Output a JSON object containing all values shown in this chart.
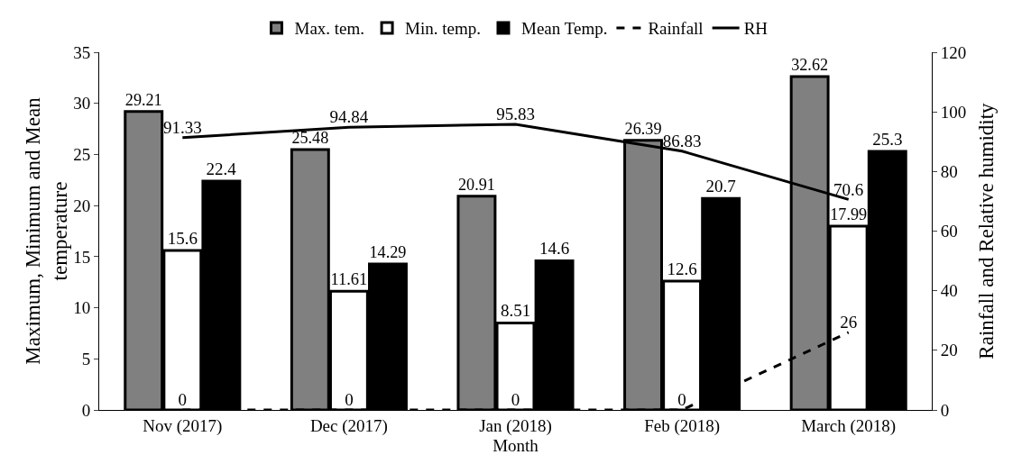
{
  "chart_data": {
    "type": "bar",
    "xlabel": "Month",
    "ylabel": "Maximum, Minimum and Mean temperature",
    "y2label": "Rainfall and Relative humidity",
    "categories": [
      "Nov (2017)",
      "Dec (2017)",
      "Jan (2018)",
      "Feb (2018)",
      "March (2018)"
    ],
    "series": [
      {
        "name": "Max. tem.",
        "color": "#808080",
        "values": [
          29.21,
          25.48,
          20.91,
          26.39,
          32.62
        ]
      },
      {
        "name": "Min. temp.",
        "color": "#ffffff",
        "values": [
          15.6,
          11.61,
          8.51,
          12.6,
          17.99
        ]
      },
      {
        "name": "Mean Temp.",
        "color": "#000000",
        "values": [
          22.4,
          14.29,
          14.6,
          20.7,
          25.3
        ]
      },
      {
        "name": "Rainfall",
        "type": "line",
        "axis": "y2",
        "color": "#000000",
        "line_style": "dashed",
        "values": [
          0,
          0,
          0,
          0,
          26
        ]
      },
      {
        "name": "RH",
        "type": "line",
        "axis": "y2",
        "color": "#000000",
        "line_style": "solid",
        "values": [
          91.33,
          94.84,
          95.83,
          86.83,
          70.6
        ]
      }
    ],
    "ylim": [
      0,
      35
    ],
    "yticks": [
      0,
      5,
      10,
      15,
      20,
      25,
      30,
      35
    ],
    "y2lim": [
      0,
      120
    ],
    "y2ticks": [
      0,
      20,
      40,
      60,
      80,
      100,
      120
    ],
    "data_labels": true,
    "grid": false,
    "legend": "top",
    "marker": "none"
  }
}
